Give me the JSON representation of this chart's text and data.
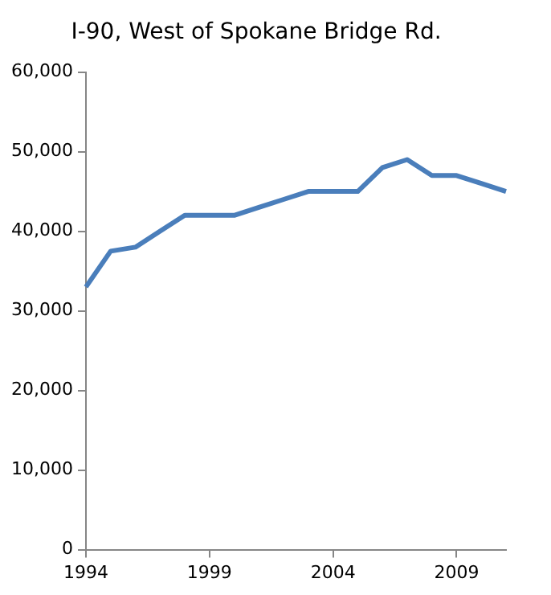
{
  "chart_data": {
    "type": "line",
    "title": "I-90, West of Spokane Bridge Rd.",
    "categories": [
      "1994",
      null,
      null,
      null,
      null,
      "1999",
      null,
      null,
      null,
      null,
      "2004",
      null,
      null,
      null,
      null,
      "2009",
      null,
      null
    ],
    "series": [
      {
        "color": "#4a7ebb",
        "values": [
          33000,
          37500,
          38000,
          40000,
          42000,
          42000,
          42000,
          43000,
          44000,
          45000,
          45000,
          45000,
          48000,
          49000,
          47000,
          47000,
          46000,
          45000
        ]
      }
    ],
    "ylim": [
      0,
      60000
    ],
    "yticks": [
      {
        "value": 0,
        "label": "0"
      },
      {
        "value": 10000,
        "label": "10,000"
      },
      {
        "value": 20000,
        "label": "20,000"
      },
      {
        "value": 30000,
        "label": "30,000"
      },
      {
        "value": 40000,
        "label": "40,000"
      },
      {
        "value": 50000,
        "label": "50,000"
      },
      {
        "value": 60000,
        "label": "60,000"
      }
    ],
    "grid": false,
    "legend": false,
    "marker": "none",
    "line_style": "solid"
  }
}
